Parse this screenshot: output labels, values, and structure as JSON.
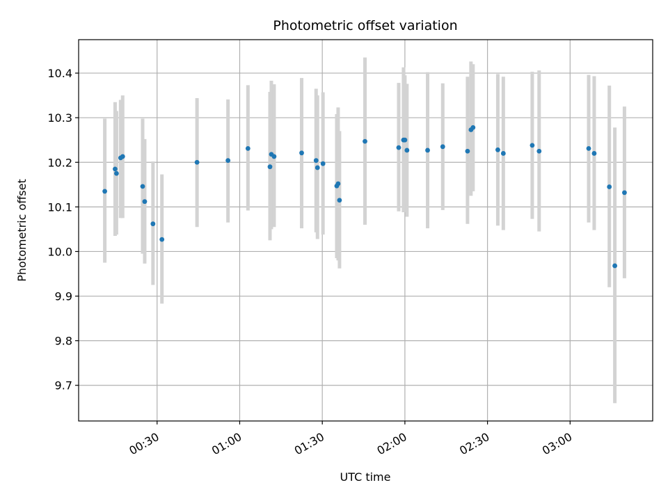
{
  "chart_data": {
    "type": "scatter",
    "title": "Photometric offset variation",
    "xlabel": "UTC time",
    "ylabel": "Photometric offset",
    "xlim": [
      "00:01:30",
      "03:30:00"
    ],
    "ylim": [
      9.62,
      10.475
    ],
    "x_ticks": [
      "00:30",
      "01:00",
      "01:30",
      "02:00",
      "02:30",
      "03:00"
    ],
    "y_ticks": [
      "9.7",
      "9.8",
      "9.9",
      "10.0",
      "10.1",
      "10.2",
      "10.3",
      "10.4"
    ],
    "grid": true,
    "colors": {
      "points": "#1f77b4",
      "error_bars": "#d3d3d3",
      "grid": "#b0b0b0"
    },
    "points": [
      {
        "x": "00:11:00",
        "y": 10.135,
        "lo": 9.975,
        "hi": 10.298
      },
      {
        "x": "00:14:45",
        "y": 10.185,
        "lo": 10.035,
        "hi": 10.335
      },
      {
        "x": "00:15:15",
        "y": 10.175,
        "lo": 10.038,
        "hi": 10.315
      },
      {
        "x": "00:16:45",
        "y": 10.21,
        "lo": 10.075,
        "hi": 10.34
      },
      {
        "x": "00:17:30",
        "y": 10.213,
        "lo": 10.075,
        "hi": 10.35
      },
      {
        "x": "00:24:45",
        "y": 10.146,
        "lo": 9.995,
        "hi": 10.298
      },
      {
        "x": "00:25:30",
        "y": 10.112,
        "lo": 9.973,
        "hi": 10.252
      },
      {
        "x": "00:28:30",
        "y": 10.062,
        "lo": 9.925,
        "hi": 10.202
      },
      {
        "x": "00:31:45",
        "y": 10.027,
        "lo": 9.883,
        "hi": 10.173
      },
      {
        "x": "00:44:30",
        "y": 10.2,
        "lo": 10.055,
        "hi": 10.344
      },
      {
        "x": "00:55:45",
        "y": 10.204,
        "lo": 10.065,
        "hi": 10.341
      },
      {
        "x": "01:03:00",
        "y": 10.231,
        "lo": 10.092,
        "hi": 10.373
      },
      {
        "x": "01:11:00",
        "y": 10.19,
        "lo": 10.025,
        "hi": 10.358
      },
      {
        "x": "01:11:30",
        "y": 10.218,
        "lo": 10.05,
        "hi": 10.383
      },
      {
        "x": "01:12:30",
        "y": 10.213,
        "lo": 10.055,
        "hi": 10.375
      },
      {
        "x": "01:22:30",
        "y": 10.221,
        "lo": 10.052,
        "hi": 10.389
      },
      {
        "x": "01:27:45",
        "y": 10.204,
        "lo": 10.043,
        "hi": 10.365
      },
      {
        "x": "01:28:15",
        "y": 10.188,
        "lo": 10.028,
        "hi": 10.35
      },
      {
        "x": "01:30:15",
        "y": 10.197,
        "lo": 10.038,
        "hi": 10.357
      },
      {
        "x": "01:35:15",
        "y": 10.147,
        "lo": 9.985,
        "hi": 10.308
      },
      {
        "x": "01:35:45",
        "y": 10.152,
        "lo": 9.98,
        "hi": 10.323
      },
      {
        "x": "01:36:15",
        "y": 10.115,
        "lo": 9.962,
        "hi": 10.27
      },
      {
        "x": "01:45:30",
        "y": 10.247,
        "lo": 10.06,
        "hi": 10.435
      },
      {
        "x": "01:57:45",
        "y": 10.233,
        "lo": 10.09,
        "hi": 10.378
      },
      {
        "x": "01:59:30",
        "y": 10.25,
        "lo": 10.088,
        "hi": 10.413
      },
      {
        "x": "02:00:00",
        "y": 10.25,
        "lo": 10.105,
        "hi": 10.395
      },
      {
        "x": "02:00:45",
        "y": 10.227,
        "lo": 10.078,
        "hi": 10.376
      },
      {
        "x": "02:08:15",
        "y": 10.227,
        "lo": 10.052,
        "hi": 10.402
      },
      {
        "x": "02:13:45",
        "y": 10.235,
        "lo": 10.093,
        "hi": 10.377
      },
      {
        "x": "02:22:45",
        "y": 10.225,
        "lo": 10.062,
        "hi": 10.392
      },
      {
        "x": "02:24:00",
        "y": 10.273,
        "lo": 10.125,
        "hi": 10.426
      },
      {
        "x": "02:24:45",
        "y": 10.278,
        "lo": 10.135,
        "hi": 10.42
      },
      {
        "x": "02:33:45",
        "y": 10.228,
        "lo": 10.058,
        "hi": 10.398
      },
      {
        "x": "02:35:45",
        "y": 10.22,
        "lo": 10.048,
        "hi": 10.392
      },
      {
        "x": "02:46:15",
        "y": 10.238,
        "lo": 10.073,
        "hi": 10.403
      },
      {
        "x": "02:48:45",
        "y": 10.225,
        "lo": 10.045,
        "hi": 10.406
      },
      {
        "x": "03:06:45",
        "y": 10.231,
        "lo": 10.065,
        "hi": 10.396
      },
      {
        "x": "03:08:45",
        "y": 10.22,
        "lo": 10.048,
        "hi": 10.393
      },
      {
        "x": "03:14:15",
        "y": 10.145,
        "lo": 9.92,
        "hi": 10.372
      },
      {
        "x": "03:16:15",
        "y": 9.968,
        "lo": 9.66,
        "hi": 10.278
      },
      {
        "x": "03:19:45",
        "y": 10.132,
        "lo": 9.94,
        "hi": 10.325
      }
    ]
  }
}
